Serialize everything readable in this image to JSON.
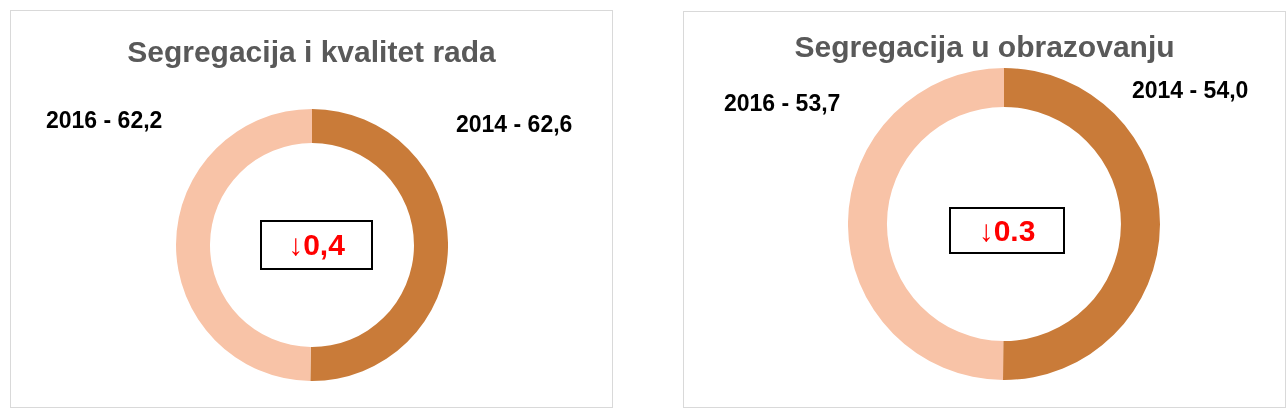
{
  "chart_data": [
    {
      "type": "donut",
      "title": "Segregacija i kvalitet rada",
      "categories": [
        "2014 - 62,6",
        "2016 - 62,2"
      ],
      "values": [
        50.2,
        49.8
      ],
      "colors": [
        "#c97b39",
        "#f8c3a7"
      ],
      "annotations": [
        "↓0,4"
      ]
    },
    {
      "type": "donut",
      "title": "Segregacija u obrazovanju",
      "categories": [
        "2014 - 54,0",
        "2016 - 53,7"
      ],
      "values": [
        50.1,
        49.9
      ],
      "colors": [
        "#c97b39",
        "#f8c3a7"
      ],
      "annotations": [
        "↓0.3"
      ]
    }
  ]
}
